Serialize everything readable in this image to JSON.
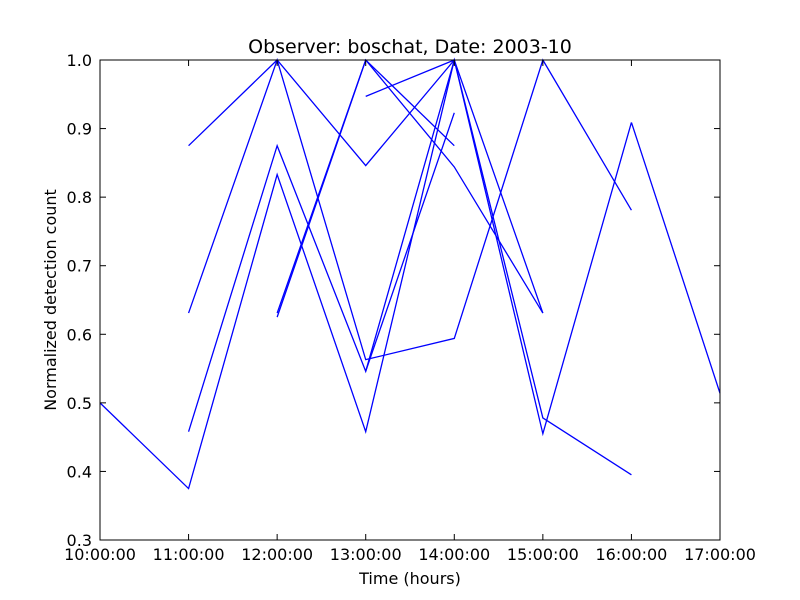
{
  "chart_data": {
    "type": "line",
    "title": "Observer: boschat, Date: 2003-10",
    "xlabel": "Time (hours)",
    "ylabel": "Normalized detection count",
    "xlim": [
      10,
      17
    ],
    "ylim": [
      0.3,
      1.0
    ],
    "x_ticks": [
      "10:00:00",
      "11:00:00",
      "12:00:00",
      "13:00:00",
      "14:00:00",
      "15:00:00",
      "16:00:00",
      "17:00:00"
    ],
    "y_ticks": [
      "0.3",
      "0.4",
      "0.5",
      "0.6",
      "0.7",
      "0.8",
      "0.9",
      "1.0"
    ],
    "grid": false,
    "line_color": "#0000ff",
    "series": [
      {
        "x": [
          10,
          11,
          12,
          13,
          14,
          15
        ],
        "y": [
          0.5,
          0.375,
          0.833,
          0.458,
          1.0,
          0.631
        ]
      },
      {
        "x": [
          11,
          12,
          13,
          14,
          15,
          16
        ],
        "y": [
          0.875,
          1.0,
          0.846,
          1.0,
          0.455,
          0.909
        ]
      },
      {
        "x": [
          11,
          12,
          13,
          14,
          15,
          16
        ],
        "y": [
          0.631,
          1.0,
          0.563,
          0.594,
          1.0,
          0.781
        ]
      },
      {
        "x": [
          11,
          12,
          13,
          14,
          15,
          16
        ],
        "y": [
          0.458,
          0.875,
          0.546,
          1.0,
          0.478,
          0.395
        ]
      },
      {
        "x": [
          12,
          13,
          14
        ],
        "y": [
          0.625,
          1.0,
          0.875
        ]
      },
      {
        "x": [
          12,
          13,
          14,
          15
        ],
        "y": [
          0.631,
          1.0,
          0.844,
          0.631
        ]
      },
      {
        "x": [
          13,
          14
        ],
        "y": [
          0.947,
          1.0
        ]
      },
      {
        "x": [
          13,
          14
        ],
        "y": [
          0.546,
          0.923
        ]
      },
      {
        "x": [
          16,
          17
        ],
        "y": [
          0.909,
          0.514
        ]
      }
    ]
  }
}
